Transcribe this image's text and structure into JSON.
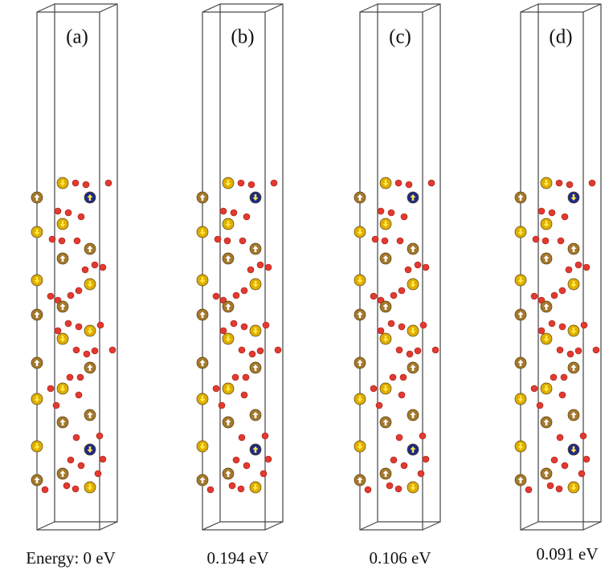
{
  "panels": [
    {
      "label": "(a)",
      "energy": "Energy: 0 eV"
    },
    {
      "label": "(b)",
      "energy": "0.194 eV"
    },
    {
      "label": "(c)",
      "energy": "0.106 eV"
    },
    {
      "label": "(d)",
      "energy": "0.091 eV"
    }
  ]
}
